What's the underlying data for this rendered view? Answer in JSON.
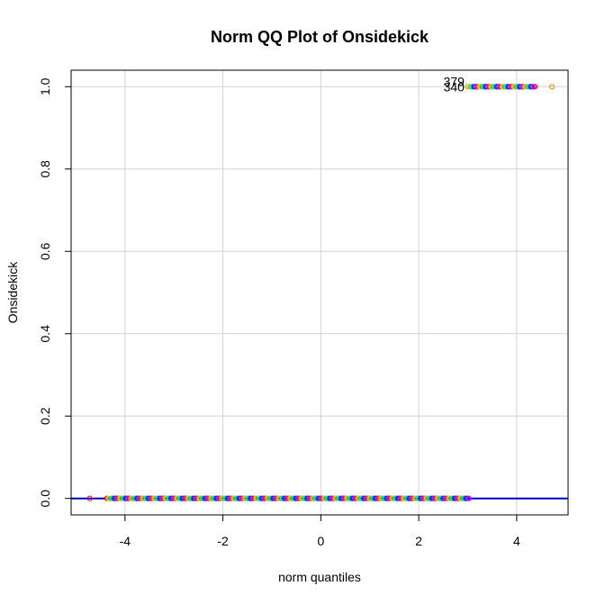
{
  "chart_data": {
    "type": "scatter",
    "title": "Norm QQ Plot of Onsidekick",
    "xlabel": "norm quantiles",
    "ylabel": "Onsidekick",
    "xlim": [
      -5.1,
      5.05
    ],
    "ylim": [
      -0.04,
      1.04
    ],
    "xticks": [
      -4,
      -2,
      0,
      2,
      4
    ],
    "xtick_labels": [
      "-4",
      "-2",
      "0",
      "2",
      "4"
    ],
    "yticks": [
      0.0,
      0.2,
      0.4,
      0.6,
      0.8,
      1.0
    ],
    "ytick_labels": [
      "0.0",
      "0.2",
      "0.4",
      "0.6",
      "0.8",
      "1.0"
    ],
    "grid": true,
    "reference_line": {
      "intercept": 0,
      "slope": 0,
      "color": "#0000cc"
    },
    "point_colors": [
      "#ff0000",
      "#ff7f00",
      "#ffd700",
      "#7fff00",
      "#00cc66",
      "#00ffff",
      "#0080ff",
      "#0000ff",
      "#8000ff",
      "#ff00ff"
    ],
    "series": [
      {
        "y": 0,
        "x_range": [
          -4.72,
          3.02
        ],
        "count": 320,
        "outliers": [
          -4.72
        ]
      },
      {
        "y": 1,
        "x_range": [
          3.0,
          4.72
        ],
        "count": 60,
        "outliers": [
          4.72
        ]
      }
    ],
    "annotations": [
      {
        "text": "379",
        "x": 2.72,
        "y": 1.0,
        "offset": "up"
      },
      {
        "text": "340",
        "x": 2.72,
        "y": 1.0,
        "offset": "down"
      }
    ]
  }
}
